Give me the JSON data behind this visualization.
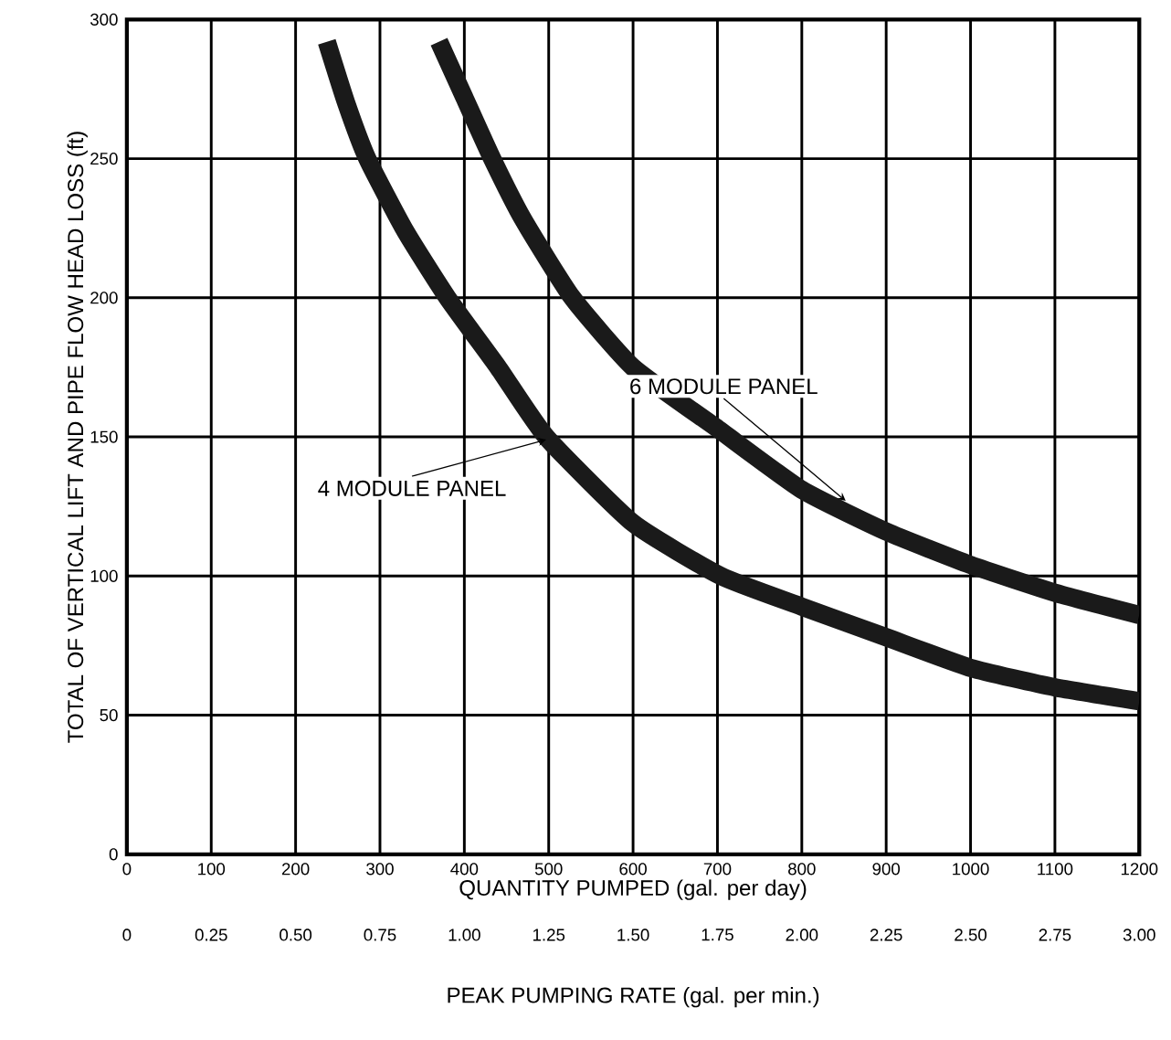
{
  "chart_data": {
    "type": "line",
    "xlabel": "QUANTITY PUMPED (gal. per day)",
    "ylabel": "TOTAL OF VERTICAL LIFT AND PIPE FLOW HEAD LOSS (ft)",
    "x2label": "PEAK PUMPING RATE (gal. per min.)",
    "xlim": [
      0,
      1200
    ],
    "xticks": [
      0,
      100,
      200,
      300,
      400,
      500,
      600,
      700,
      800,
      900,
      1000,
      1100,
      1200
    ],
    "ylim": [
      0,
      300
    ],
    "yticks": [
      0,
      50,
      100,
      150,
      200,
      250,
      300
    ],
    "x2lim": [
      0,
      3
    ],
    "x2ticks": [
      0,
      {
        "value": 0.25,
        "label": "0.25"
      },
      {
        "value": 0.5,
        "label": "0.50"
      },
      {
        "value": 0.75,
        "label": "0.75"
      },
      {
        "value": 1,
        "label": "1.00"
      },
      {
        "value": 1.25,
        "label": "1.25"
      },
      {
        "value": 1.5,
        "label": "1.50"
      },
      {
        "value": 1.75,
        "label": "1.75"
      },
      {
        "value": 2,
        "label": "2.00"
      },
      {
        "value": 2.25,
        "label": "2.25"
      },
      {
        "value": 2.5,
        "label": "2.50"
      },
      {
        "value": 2.75,
        "label": "2.75"
      },
      {
        "value": 3,
        "label": "3.00"
      }
    ],
    "grid": true,
    "line_style": "solid",
    "marker": "none",
    "series": [
      {
        "color": "#1a1a1a",
        "x": [
          237,
          260,
          285,
          330,
          380,
          440,
          497,
          600,
          704,
          800,
          900,
          1000,
          1100,
          1200
        ],
        "values": [
          292,
          270,
          250,
          224,
          200,
          175,
          150,
          119,
          100,
          89,
          78,
          67,
          60,
          55
        ]
      },
      {
        "color": "#1a1a1a",
        "x": [
          370,
          400,
          433,
          470,
          528,
          600,
          700,
          800,
          900,
          1000,
          1100,
          1200
        ],
        "values": [
          292,
          272,
          250,
          228,
          200,
          175,
          153,
          131,
          116,
          104,
          94,
          86
        ]
      }
    ],
    "annotations": [
      {
        "text": "4 MODULE PANEL",
        "x": 497,
        "y": 149
      },
      {
        "text": "6 MODULE PANEL",
        "x": 852,
        "y": 127
      }
    ]
  }
}
